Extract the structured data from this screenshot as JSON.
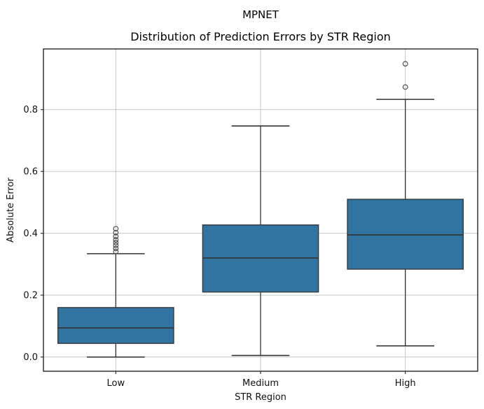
{
  "figure": {
    "suptitle": "MPNET",
    "title": "Distribution of Prediction Errors by STR Region",
    "xlabel": "STR Region",
    "ylabel": "Absolute Error"
  },
  "chart_data": {
    "type": "boxplot",
    "title": "Distribution of Prediction Errors by STR Region",
    "suptitle": "MPNET",
    "xlabel": "STR Region",
    "ylabel": "Absolute Error",
    "categories": [
      "Low",
      "Medium",
      "High"
    ],
    "yticks": [
      0.0,
      0.2,
      0.4,
      0.6,
      0.8
    ],
    "ylim": [
      -0.046,
      0.996
    ],
    "grid": true,
    "legend": false,
    "boxes": [
      {
        "category": "Low",
        "whisker_low": 0.0,
        "q1": 0.044,
        "median": 0.094,
        "q3": 0.16,
        "whisker_high": 0.334,
        "outliers": [
          0.341,
          0.351,
          0.361,
          0.37,
          0.379,
          0.39,
          0.402,
          0.415
        ]
      },
      {
        "category": "Medium",
        "whisker_low": 0.005,
        "q1": 0.21,
        "median": 0.32,
        "q3": 0.427,
        "whisker_high": 0.747,
        "outliers": []
      },
      {
        "category": "High",
        "whisker_low": 0.036,
        "q1": 0.284,
        "median": 0.395,
        "q3": 0.51,
        "whisker_high": 0.833,
        "outliers": [
          0.873,
          0.948
        ]
      }
    ],
    "colors": {
      "box_fill": "#3274a1",
      "line": "#333333",
      "grid": "#c6c6c6",
      "spine": "#000000",
      "text": "#111111"
    }
  }
}
